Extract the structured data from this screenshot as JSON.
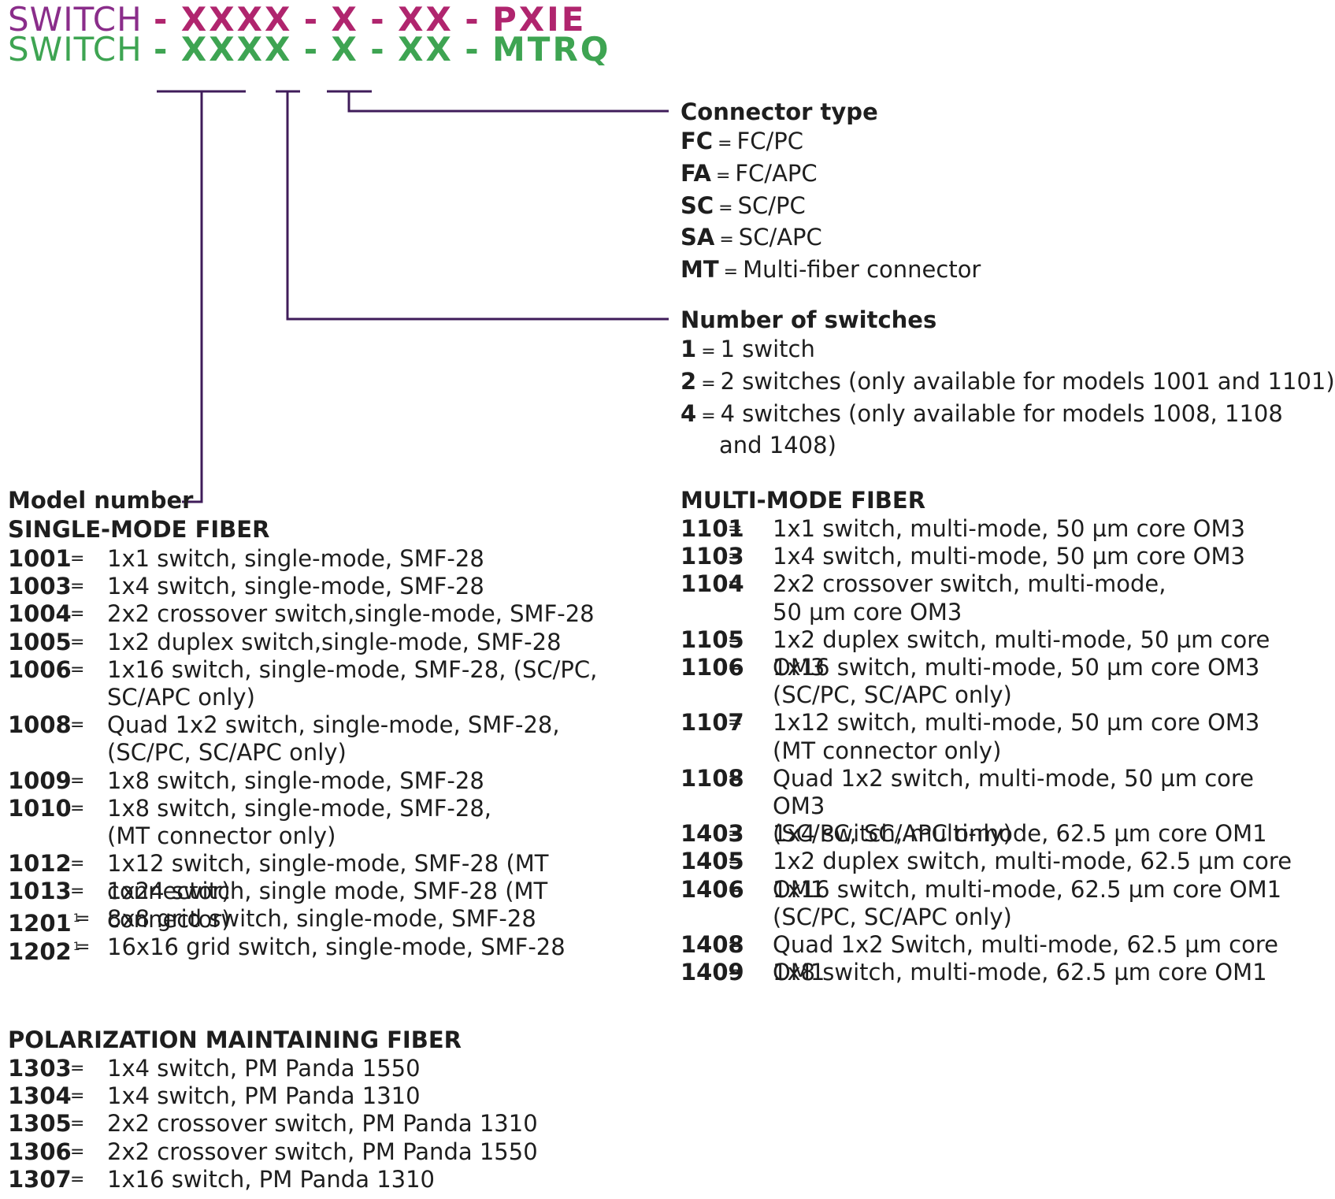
{
  "part_numbers": {
    "pxie": {
      "lead": "SWITCH",
      "segments": [
        "-",
        "XXXX",
        "-",
        "X",
        "-",
        "XX",
        "-",
        "PXIE"
      ]
    },
    "mtrq": {
      "lead": "SWITCH",
      "segments": [
        "-",
        "XXXX",
        "-",
        "X",
        "-",
        "XX",
        "-",
        "MTRQ"
      ]
    }
  },
  "colors": {
    "pxie": "#b0256e",
    "pxie_lead": "#8a2d8a",
    "mtrq": "#3ea452",
    "lines": "#3f1c5a",
    "text": "#1e1e1e"
  },
  "connector_type": {
    "title": "Connector type",
    "options": [
      {
        "code": "FC",
        "value": "FC/PC"
      },
      {
        "code": "FA",
        "value": "FC/APC"
      },
      {
        "code": "SC",
        "value": "SC/PC"
      },
      {
        "code": "SA",
        "value": "SC/APC"
      },
      {
        "code": "MT",
        "value": "Multi-fiber connector"
      }
    ]
  },
  "number_of_switches": {
    "title": "Number of switches",
    "options": [
      {
        "code": "1",
        "value": "1 switch"
      },
      {
        "code": "2",
        "value": "2 switches (only available for models 1001 and 1101)"
      },
      {
        "code": "4",
        "value": "4 switches (only available for models 1008, 1108",
        "cont": "and 1408)"
      }
    ]
  },
  "model_number": {
    "title": "Model number",
    "single_mode": {
      "title": "SINGLE-MODE FIBER",
      "rows": [
        {
          "code": "1001",
          "desc": "1x1 switch, single-mode, SMF-28"
        },
        {
          "code": "1003",
          "desc": "1x4 switch, single-mode, SMF-28"
        },
        {
          "code": "1004",
          "desc": "2x2 crossover switch,single-mode, SMF-28"
        },
        {
          "code": "1005",
          "desc": "1x2 duplex switch,single-mode, SMF-28"
        },
        {
          "code": "1006",
          "desc": "1x16 switch, single-mode, SMF-28, (SC/PC,\nSC/APC only)"
        },
        {
          "code": "1008",
          "desc": "Quad 1x2 switch, single-mode, SMF-28,\n(SC/PC, SC/APC only)"
        },
        {
          "code": "1009",
          "desc": "1x8 switch, single-mode, SMF-28"
        },
        {
          "code": "1010",
          "desc": "1x8 switch, single-mode, SMF-28,\n(MT connector only)"
        },
        {
          "code": "1012",
          "desc": "1x12 switch, single-mode, SMF-28 (MT connector)"
        },
        {
          "code": "1013",
          "desc": "1x24 switch, single mode, SMF-28 (MT connector)"
        },
        {
          "code": "1201",
          "sup": "1",
          "desc": "8x8 grid switch, single-mode, SMF-28"
        },
        {
          "code": "1202",
          "sup": "1",
          "desc": "16x16 grid switch, single-mode, SMF-28"
        }
      ]
    },
    "pm": {
      "title": "POLARIZATION MAINTAINING FIBER",
      "rows": [
        {
          "code": "1303",
          "desc": "1x4 switch, PM Panda 1550"
        },
        {
          "code": "1304",
          "desc": "1x4 switch, PM Panda 1310"
        },
        {
          "code": "1305",
          "desc": "2x2 crossover switch, PM Panda 1310"
        },
        {
          "code": "1306",
          "desc": "2x2 crossover switch, PM Panda 1550"
        },
        {
          "code": "1307",
          "desc": "1x16 switch, PM Panda 1310"
        }
      ]
    },
    "multi_mode": {
      "title": "MULTI-MODE FIBER",
      "rows": [
        {
          "code": "1101",
          "desc": "1x1 switch, multi-mode, 50 µm core OM3"
        },
        {
          "code": "1103",
          "desc": "1x4 switch, multi-mode, 50 µm core OM3"
        },
        {
          "code": "1104",
          "desc": "2x2 crossover switch, multi-mode,\n50 µm core OM3"
        },
        {
          "code": "1105",
          "desc": "1x2 duplex switch, multi-mode, 50 µm core OM3"
        },
        {
          "code": "1106",
          "desc": "1x16 switch, multi-mode, 50 µm core OM3\n(SC/PC, SC/APC only)"
        },
        {
          "code": "1107",
          "desc": "1x12 switch, multi-mode, 50 µm core OM3\n(MT connector only)"
        },
        {
          "code": "1108",
          "desc": "Quad 1x2 switch, multi-mode, 50 µm core OM3\n(SC/PC, SC/APC only)"
        },
        {
          "code": "1403",
          "desc": "1x4 switch, multi-mode, 62.5 µm core OM1"
        },
        {
          "code": "1405",
          "desc": "1x2 duplex switch, multi-mode, 62.5 µm core OM1"
        },
        {
          "code": "1406",
          "desc": "1x16 switch, multi-mode, 62.5 µm core OM1\n(SC/PC, SC/APC only)"
        },
        {
          "code": "1408",
          "desc": "Quad 1x2 Switch, multi-mode, 62.5 µm core OM1"
        },
        {
          "code": "1409",
          "desc": "1x8 switch, multi-mode, 62.5 µm core OM1"
        }
      ]
    }
  },
  "equals_sign": "="
}
